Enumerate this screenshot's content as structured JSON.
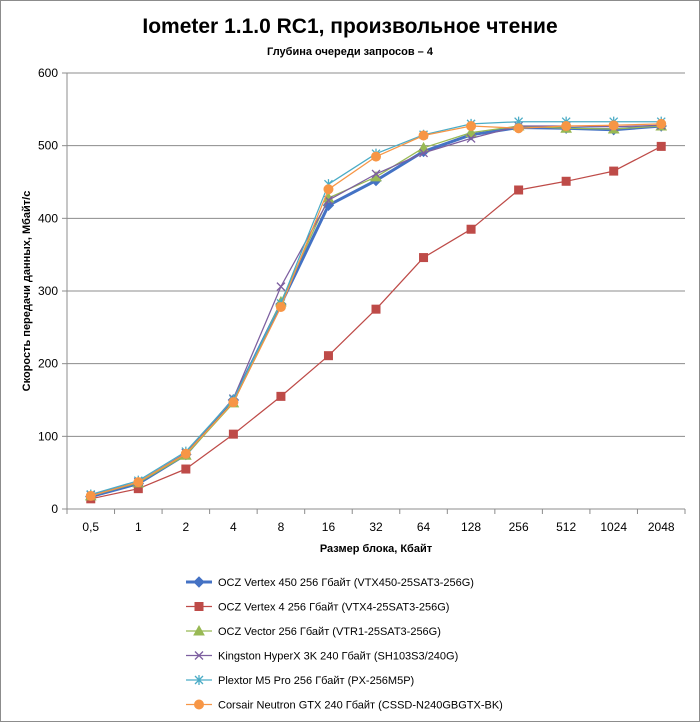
{
  "chart_data": {
    "type": "line",
    "title": "Iometer 1.1.0 RC1, произвольное чтение",
    "subtitle": "Глубина очереди запросов – 4",
    "xlabel": "Размер блока, Кбайт",
    "ylabel": "Скорость передачи данных, Мбайт/с",
    "categories": [
      "0,5",
      "1",
      "2",
      "4",
      "8",
      "16",
      "32",
      "64",
      "128",
      "256",
      "512",
      "1024",
      "2048"
    ],
    "ylim": [
      0,
      600
    ],
    "yticks": [
      "0",
      "100",
      "200",
      "300",
      "400",
      "500",
      "600"
    ],
    "grid": "horizontal",
    "legend_position": "bottom",
    "series": [
      {
        "name": "OCZ Vertex  450 256 Гбайт (VTX450-25SAT3-256G)",
        "color": "#4472c4",
        "marker": "diamond",
        "values": [
          17,
          35,
          75,
          150,
          282,
          418,
          452,
          492,
          515,
          525,
          524,
          522,
          527
        ]
      },
      {
        "name": "OCZ Vertex  4 256 Гбайт (VTX4-25SAT3-256G)",
        "color": "#be4b48",
        "marker": "square",
        "values": [
          14,
          28,
          55,
          103,
          155,
          211,
          275,
          346,
          385,
          439,
          451,
          465,
          499
        ]
      },
      {
        "name": "OCZ Vector  256 Гбайт (VTR1-25SAT3-256G)",
        "color": "#98b954",
        "marker": "triangle",
        "values": [
          18,
          36,
          74,
          146,
          285,
          428,
          457,
          497,
          518,
          527,
          524,
          523,
          527
        ]
      },
      {
        "name": "Kingston HyperX  3K 240 Гбайт (SH103S3/240G)",
        "color": "#7d5fa0",
        "marker": "x",
        "values": [
          19,
          37,
          77,
          152,
          306,
          425,
          461,
          490,
          510,
          527,
          527,
          526,
          528
        ]
      },
      {
        "name": "Plextor M5 Pro 256 Гбайт (PX-256M5P)",
        "color": "#4bacc6",
        "marker": "star",
        "values": [
          20,
          39,
          79,
          151,
          283,
          447,
          489,
          515,
          530,
          533,
          533,
          533,
          533
        ]
      },
      {
        "name": "Corsair Neutron GTX 240 Гбайт (CSSD-N240GBGTX-BK)",
        "color": "#f79646",
        "marker": "circle",
        "values": [
          18,
          37,
          76,
          147,
          278,
          440,
          485,
          514,
          527,
          524,
          527,
          528,
          530
        ]
      }
    ]
  }
}
